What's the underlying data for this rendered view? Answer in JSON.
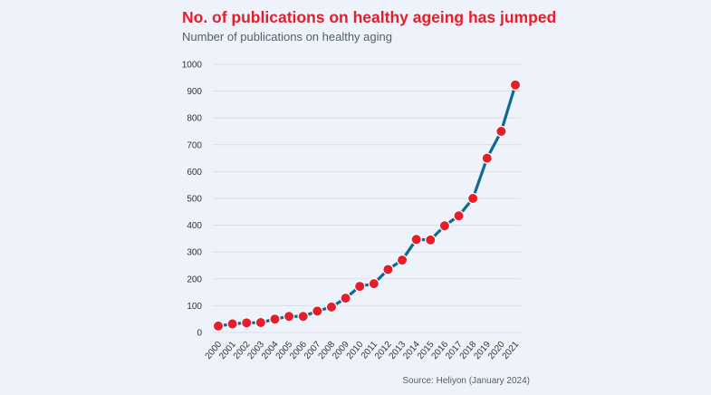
{
  "header": {
    "title": "No. of publications on healthy ageing has jumped",
    "subtitle": "Number of publications on healthy aging"
  },
  "footer": {
    "source": "Source: Heliyon (January 2024)"
  },
  "colors": {
    "title": "#e41e2b",
    "line": "#0f6b8c",
    "marker": "#e41e2b",
    "background": "#eef3fb",
    "grid": "#d8dde5"
  },
  "chart_data": {
    "type": "line",
    "title": "No. of publications on healthy ageing has jumped",
    "subtitle": "Number of publications on healthy aging",
    "xlabel": "",
    "ylabel": "",
    "ylim": [
      0,
      1000
    ],
    "yticks": [
      0,
      100,
      200,
      300,
      400,
      500,
      600,
      700,
      800,
      900,
      1000
    ],
    "grid": true,
    "legend": "none",
    "x": [
      "2000",
      "2001",
      "2002",
      "2003",
      "2004",
      "2005",
      "2006",
      "2007",
      "2008",
      "2009",
      "2010",
      "2011",
      "2012",
      "2013",
      "2014",
      "2015",
      "2016",
      "2017",
      "2018",
      "2019",
      "2020",
      "2021"
    ],
    "series": [
      {
        "name": "Publications",
        "values": [
          24,
          32,
          36,
          37,
          50,
          60,
          60,
          80,
          95,
          128,
          172,
          182,
          235,
          270,
          347,
          345,
          398,
          435,
          500,
          650,
          750,
          923
        ]
      }
    ]
  }
}
